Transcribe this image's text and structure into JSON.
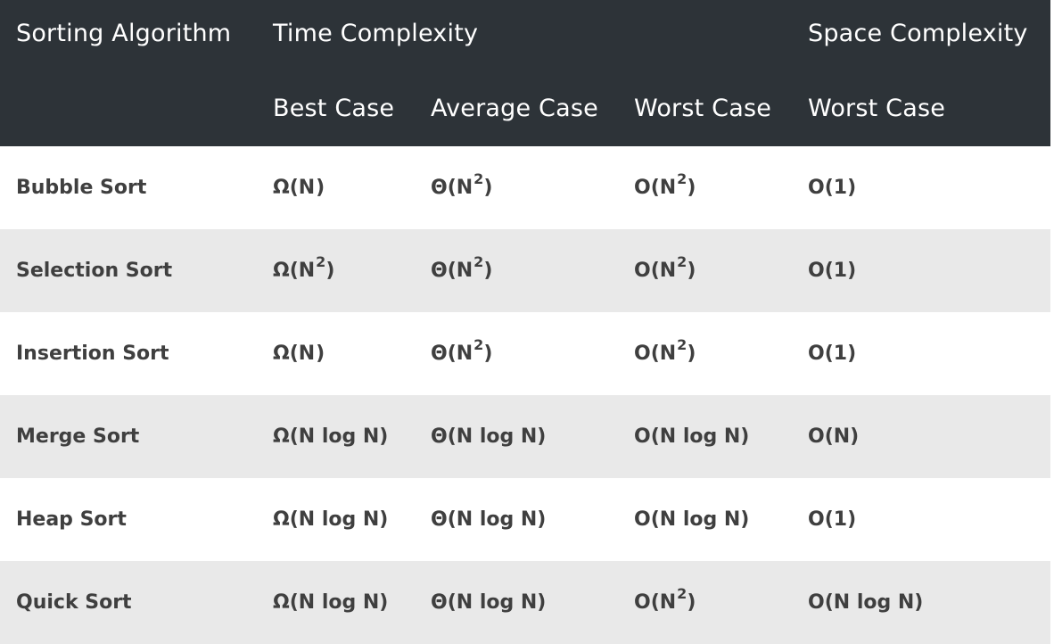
{
  "header": {
    "algorithm": "Sorting Algorithm",
    "time_complexity": "Time Complexity",
    "space_complexity": "Space Complexity",
    "best_case": "Best Case",
    "average_case": "Average Case",
    "worst_case": "Worst Case",
    "space_worst_case": "Worst Case"
  },
  "rows": [
    {
      "name": "Bubble Sort",
      "best": {
        "base": "Ω(N",
        "sup": "",
        "tail": ")"
      },
      "average": {
        "base": "Θ(N",
        "sup": "2",
        "tail": ")"
      },
      "worst": {
        "base": "O(N",
        "sup": "2",
        "tail": ")"
      },
      "space": {
        "base": "O(1)",
        "sup": "",
        "tail": ""
      }
    },
    {
      "name": "Selection Sort",
      "best": {
        "base": "Ω(N",
        "sup": "2",
        "tail": ")"
      },
      "average": {
        "base": "Θ(N",
        "sup": "2",
        "tail": ")"
      },
      "worst": {
        "base": "O(N",
        "sup": "2",
        "tail": ")"
      },
      "space": {
        "base": "O(1)",
        "sup": "",
        "tail": ""
      }
    },
    {
      "name": "Insertion Sort",
      "best": {
        "base": "Ω(N",
        "sup": "",
        "tail": ")"
      },
      "average": {
        "base": "Θ(N",
        "sup": "2",
        "tail": ")"
      },
      "worst": {
        "base": "O(N",
        "sup": "2",
        "tail": ")"
      },
      "space": {
        "base": "O(1)",
        "sup": "",
        "tail": ""
      }
    },
    {
      "name": "Merge Sort",
      "best": {
        "base": "Ω(N log N)",
        "sup": "",
        "tail": ""
      },
      "average": {
        "base": "Θ(N log N)",
        "sup": "",
        "tail": ""
      },
      "worst": {
        "base": "O(N log N)",
        "sup": "",
        "tail": ""
      },
      "space": {
        "base": "O(N)",
        "sup": "",
        "tail": ""
      }
    },
    {
      "name": "Heap Sort",
      "best": {
        "base": "Ω(N log N)",
        "sup": "",
        "tail": ""
      },
      "average": {
        "base": "Θ(N log N)",
        "sup": "",
        "tail": ""
      },
      "worst": {
        "base": "O(N log N)",
        "sup": "",
        "tail": ""
      },
      "space": {
        "base": "O(1)",
        "sup": "",
        "tail": ""
      }
    },
    {
      "name": "Quick Sort",
      "best": {
        "base": "Ω(N log N)",
        "sup": "",
        "tail": ""
      },
      "average": {
        "base": "Θ(N log N)",
        "sup": "",
        "tail": ""
      },
      "worst": {
        "base": "O(N",
        "sup": "2",
        "tail": ")"
      },
      "space": {
        "base": "O(N log N)",
        "sup": "",
        "tail": ""
      }
    }
  ],
  "colors": {
    "header_bg": "#2d3338",
    "header_text": "#ffffff",
    "row_even_bg": "#e9e9e9",
    "row_odd_bg": "#ffffff",
    "body_text": "#3f3f3f"
  }
}
